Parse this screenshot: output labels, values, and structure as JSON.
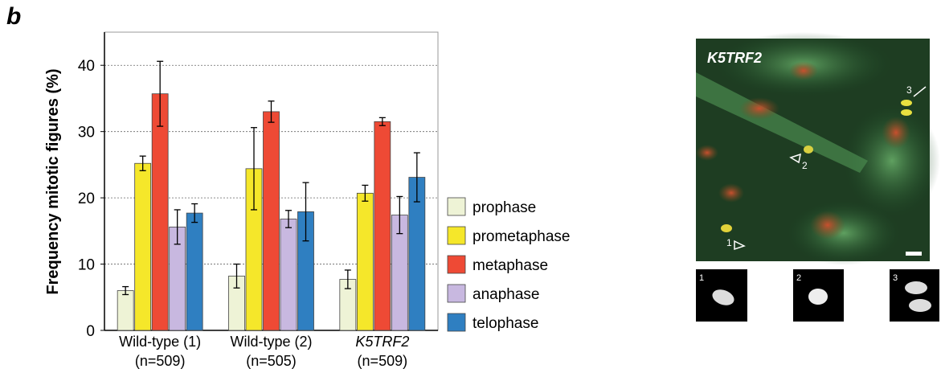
{
  "panel_label": "b",
  "chart_data": {
    "type": "bar",
    "y_label": "Frequency mitotic figures (%)",
    "categories": [
      "Wild-type (1)",
      "Wild-type (2)",
      "K5TRF2"
    ],
    "category_sublabels": [
      "(n=509)",
      "(n=505)",
      "(n=509)"
    ],
    "series": [
      {
        "name": "prophase",
        "color": "#eef3d6",
        "values": [
          6,
          8.2,
          7.7
        ],
        "errors": [
          0.6,
          1.8,
          1.4
        ]
      },
      {
        "name": "prometaphase",
        "color": "#f5e72a",
        "values": [
          25.2,
          24.4,
          20.7
        ],
        "errors": [
          1.1,
          6.2,
          1.2
        ]
      },
      {
        "name": "metaphase",
        "color": "#ee4a35",
        "values": [
          35.7,
          33,
          31.5
        ],
        "errors": [
          4.9,
          1.6,
          0.6
        ]
      },
      {
        "name": "anaphase",
        "color": "#c8b8e0",
        "values": [
          15.6,
          16.8,
          17.4
        ],
        "errors": [
          2.6,
          1.3,
          2.8
        ]
      },
      {
        "name": "telophase",
        "color": "#2f7fc1",
        "values": [
          17.7,
          17.9,
          23.1
        ],
        "errors": [
          1.4,
          4.4,
          3.7
        ]
      }
    ],
    "ylim": [
      0,
      45
    ],
    "yticks": [
      0,
      10,
      20,
      30,
      40
    ],
    "grid": true,
    "legend": "right"
  },
  "micrograph": {
    "title": "K5TRF2",
    "markers": [
      "1",
      "2",
      "3"
    ],
    "insets": [
      "1",
      "2",
      "3"
    ]
  }
}
